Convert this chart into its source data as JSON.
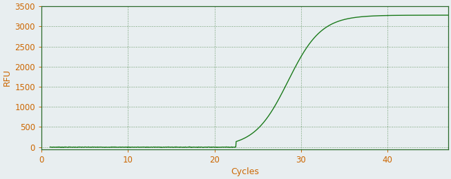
{
  "xlabel": "Cycles",
  "ylabel": "RFU",
  "line_color": "#1a7a1a",
  "background_color": "#e8eef0",
  "grid_color": "#6a9a6a",
  "xlim": [
    0,
    47
  ],
  "ylim": [
    -50,
    3500
  ],
  "xticks": [
    0,
    10,
    20,
    30,
    40
  ],
  "yticks": [
    0,
    500,
    1000,
    1500,
    2000,
    2500,
    3000,
    3500
  ],
  "sigmoid_L": 3280,
  "sigmoid_k": 0.52,
  "sigmoid_x0": 28.5,
  "x_start": 1,
  "x_end": 47,
  "tick_color": "#cc6600",
  "tick_fontsize": 8.5,
  "label_fontsize": 9
}
